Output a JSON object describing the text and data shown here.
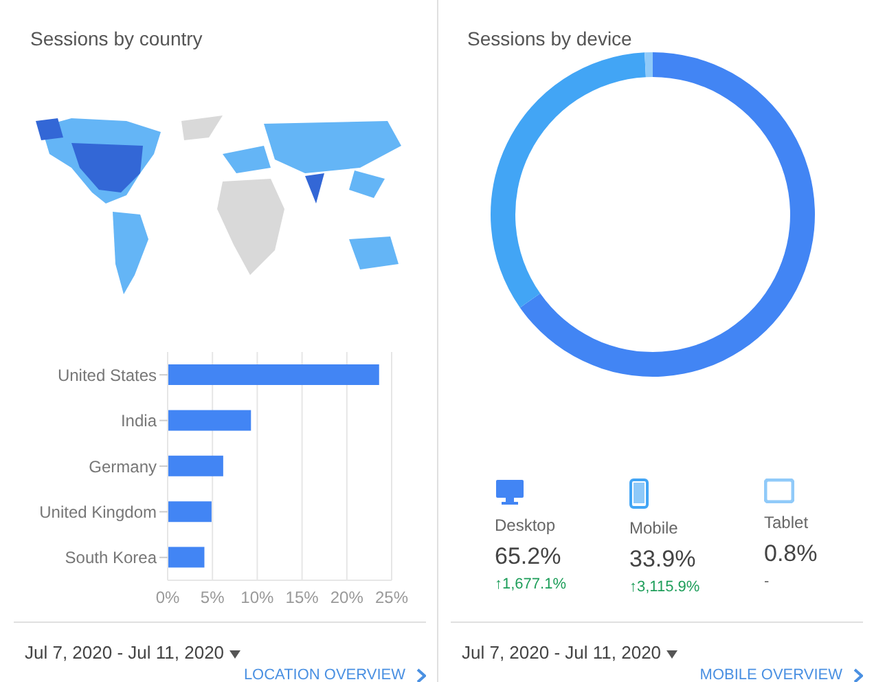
{
  "chart_data": [
    {
      "type": "bar",
      "title": "Sessions by country",
      "orientation": "horizontal",
      "categories": [
        "United States",
        "India",
        "Germany",
        "United Kingdom",
        "South Korea"
      ],
      "values": [
        23.6,
        9.3,
        6.2,
        4.9,
        4.1
      ],
      "color": "#4285f4",
      "xlim": [
        0,
        25
      ],
      "xticks": [
        {
          "value": 0,
          "label": "0%"
        },
        {
          "value": 5,
          "label": "5%"
        },
        {
          "value": 10,
          "label": "10%"
        },
        {
          "value": 15,
          "label": "15%"
        },
        {
          "value": 20,
          "label": "20%"
        },
        {
          "value": 25,
          "label": "25%"
        }
      ],
      "grid": "x",
      "annotations": [
        "Jul 7, 2020 - Jul 11, 2020",
        "LOCATION OVERVIEW"
      ]
    },
    {
      "type": "donut",
      "title": "Sessions by device",
      "categories": [
        "Desktop",
        "Mobile",
        "Tablet"
      ],
      "values": [
        65.2,
        33.9,
        0.8
      ],
      "colors": [
        "#4285f4",
        "#42a5f5",
        "#90caf9"
      ],
      "value_labels": [
        "65.2%",
        "33.9%",
        "0.8%"
      ],
      "legend": "bottom",
      "annotations": [
        "↑1,677.1%",
        "↑3,115.9%",
        "-",
        "Jul 7, 2020 - Jul 11, 2020",
        "MOBILE OVERVIEW"
      ]
    }
  ]
}
